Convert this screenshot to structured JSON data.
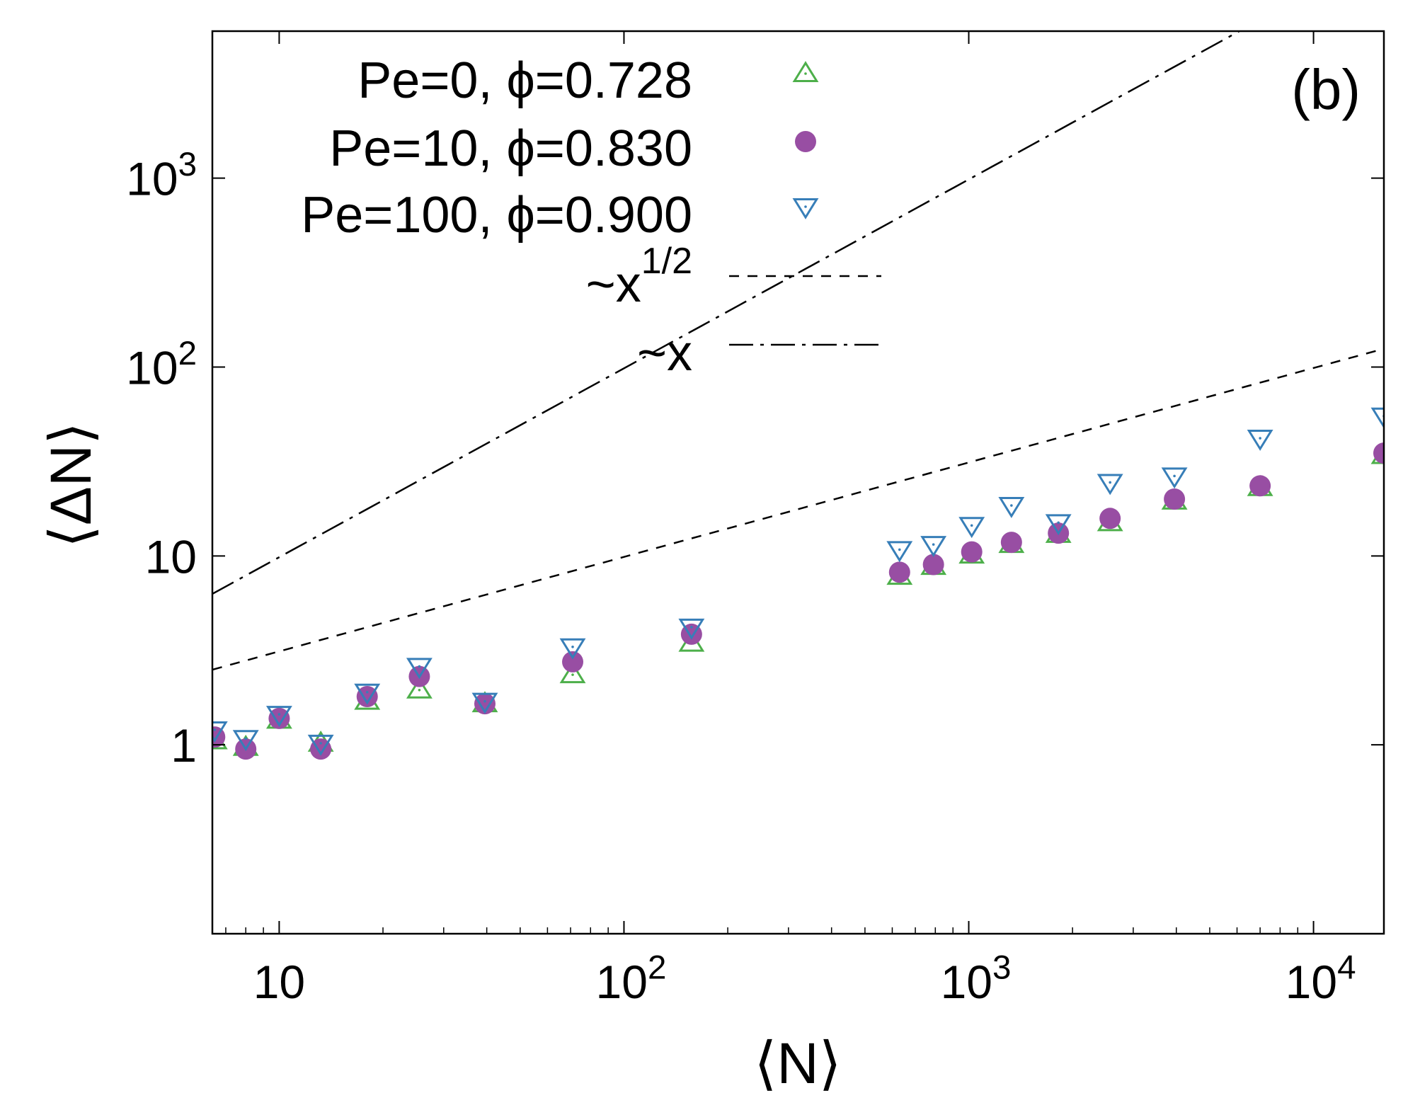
{
  "chart_data": {
    "type": "scatter",
    "panel_label": "(b)",
    "xlabel": "⟨N⟩",
    "ylabel": "⟨ΔN⟩",
    "xscale": "log",
    "yscale": "log",
    "xlim": [
      6.4,
      16000
    ],
    "ylim": [
      0.1,
      6000
    ],
    "legend_position": "top-left",
    "x_ticks": [
      {
        "value": 10,
        "mantissa": "10",
        "exp": ""
      },
      {
        "value": 100,
        "mantissa": "10",
        "exp": "2"
      },
      {
        "value": 1000,
        "mantissa": "10",
        "exp": "3"
      },
      {
        "value": 10000,
        "mantissa": "10",
        "exp": "4"
      }
    ],
    "y_ticks": [
      {
        "value": 1,
        "mantissa": "1",
        "exp": ""
      },
      {
        "value": 10,
        "mantissa": "10",
        "exp": ""
      },
      {
        "value": 100,
        "mantissa": "10",
        "exp": "2"
      },
      {
        "value": 1000,
        "mantissa": "10",
        "exp": "3"
      }
    ],
    "series": [
      {
        "name": "Pe=0, ϕ=0.728",
        "marker": "triangle-up",
        "color": "#4daf4a",
        "x": [
          6.5,
          8,
          10,
          13.2,
          18,
          25.5,
          39.5,
          71,
          157,
          630,
          790,
          1020,
          1330,
          1820,
          2570,
          3950,
          7000,
          16000
        ],
        "y": [
          1.05,
          0.97,
          1.35,
          1.02,
          1.7,
          1.95,
          1.65,
          2.35,
          3.45,
          7.8,
          8.8,
          10.1,
          11.5,
          13,
          15,
          19.5,
          23,
          34
        ]
      },
      {
        "name": "Pe=10, ϕ=0.830",
        "marker": "circle",
        "color": "#984ea3",
        "x": [
          6.5,
          8,
          10,
          13.2,
          18,
          25.5,
          39.5,
          71,
          157,
          630,
          790,
          1020,
          1330,
          1820,
          2570,
          3950,
          7000,
          16000
        ],
        "y": [
          1.1,
          0.95,
          1.38,
          0.95,
          1.8,
          2.3,
          1.65,
          2.75,
          3.85,
          8.2,
          9.0,
          10.5,
          11.8,
          13.2,
          15.8,
          20,
          23.5,
          35
        ]
      },
      {
        "name": "Pe=100, ϕ=0.900",
        "marker": "triangle-down",
        "color": "#377eb8",
        "x": [
          6.5,
          8,
          10,
          13.2,
          18,
          25.5,
          39.5,
          71,
          157,
          630,
          790,
          1020,
          1330,
          1820,
          2570,
          3950,
          7000,
          16000
        ],
        "y": [
          1.2,
          1.08,
          1.45,
          1.02,
          1.9,
          2.6,
          1.7,
          3.3,
          4.2,
          10.8,
          11.5,
          14.5,
          18.5,
          15,
          24.5,
          26.5,
          42,
          55
        ]
      }
    ],
    "reference_lines": [
      {
        "name": "~x",
        "label_base": "~x",
        "label_exp": "",
        "dash": "dashdot",
        "coef": 1.0,
        "power": 1.0
      },
      {
        "name": "~x^{1/2}",
        "label_base": "~x",
        "label_exp": "1/2",
        "dash": "dashed",
        "coef": 1.0,
        "power": 0.5
      }
    ]
  }
}
